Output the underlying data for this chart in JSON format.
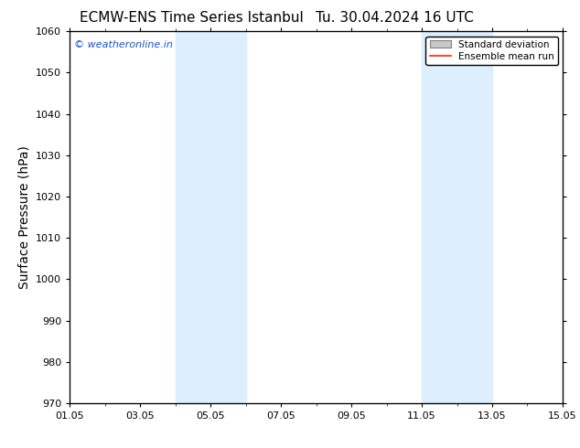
{
  "title_left": "ECMW-ENS Time Series Istanbul",
  "title_right": "Tu. 30.04.2024 16 UTC",
  "ylabel": "Surface Pressure (hPa)",
  "ylim": [
    970,
    1060
  ],
  "yticks": [
    970,
    980,
    990,
    1000,
    1010,
    1020,
    1030,
    1040,
    1050,
    1060
  ],
  "xtick_labels": [
    "01.05",
    "03.05",
    "05.05",
    "07.05",
    "09.05",
    "11.05",
    "13.05",
    "15.05"
  ],
  "xtick_positions": [
    0,
    2,
    4,
    6,
    8,
    10,
    12,
    14
  ],
  "x_min": 0,
  "x_max": 14,
  "shade_regions": [
    {
      "start": 3.0,
      "end": 5.0
    },
    {
      "start": 10.0,
      "end": 12.0
    }
  ],
  "shade_color": "#ddeeff",
  "watermark_text": "© weatheronline.in",
  "watermark_color": "#1155cc",
  "legend_std_label": "Standard deviation",
  "legend_ens_label": "Ensemble mean run",
  "legend_std_color": "#c8c8c8",
  "legend_ens_color": "#ff2200",
  "background_color": "#ffffff",
  "title_fontsize": 11,
  "tick_fontsize": 8,
  "ylabel_fontsize": 10,
  "watermark_fontsize": 8
}
